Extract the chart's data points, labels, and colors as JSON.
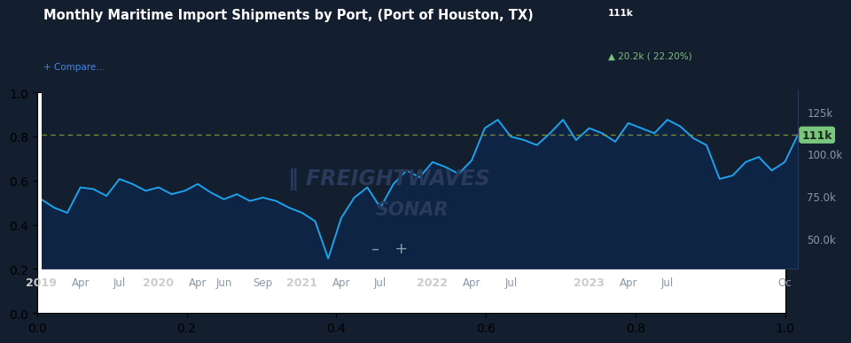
{
  "title": "Monthly Maritime Import Shipments by Port, (Port of Houston, TX)",
  "title_value": "111k",
  "title_change": "▲ 20.2k ( 22.20%)",
  "bg_color": "#131e2e",
  "plot_bg_color": "#131e2e",
  "line_color": "#1ca3ec",
  "fill_color": "#0d2444",
  "dashed_line_color": "#8a9a3a",
  "dashed_line_y": 111000,
  "label_box_color": "#7bc67e",
  "label_text_color": "#1a2a1a",
  "y_ticks": [
    50000,
    75000,
    100000,
    125000
  ],
  "y_tick_labels": [
    "50.0k",
    "75.0k",
    "100.0k",
    "125k"
  ],
  "ylim": [
    32000,
    138000
  ],
  "x_tick_positions": [
    0,
    3,
    6,
    9,
    12,
    14,
    17,
    20,
    23,
    26,
    30,
    33,
    36,
    42,
    45,
    48,
    57
  ],
  "x_tick_labels": [
    "2019",
    "Apr",
    "Jul",
    "2020",
    "Apr",
    "Jun",
    "Sep",
    "2021",
    "Apr",
    "Jul",
    "2022",
    "Apr",
    "Jul",
    "2023",
    "Apr",
    "Jul",
    "Oc"
  ],
  "x_tick_bold": [
    true,
    false,
    false,
    true,
    false,
    false,
    false,
    true,
    false,
    false,
    true,
    false,
    false,
    true,
    false,
    false,
    false
  ],
  "watermark_line1": "‖ FREIGHTWAVES",
  "watermark_line2": "SONAR",
  "compare_label": "+ Compare...",
  "data_y": [
    73000,
    68000,
    65000,
    80000,
    79000,
    75000,
    85000,
    82000,
    78000,
    80000,
    76000,
    78000,
    82000,
    77000,
    73000,
    76000,
    72000,
    74000,
    72000,
    68000,
    65000,
    60000,
    38000,
    62000,
    74000,
    80000,
    68000,
    82000,
    90000,
    86000,
    95000,
    92000,
    88000,
    96000,
    115000,
    120000,
    110000,
    108000,
    105000,
    112000,
    120000,
    108000,
    115000,
    112000,
    107000,
    118000,
    115000,
    112000,
    120000,
    116000,
    109000,
    105000,
    85000,
    87000,
    95000,
    98000,
    90000,
    95000,
    111000
  ]
}
